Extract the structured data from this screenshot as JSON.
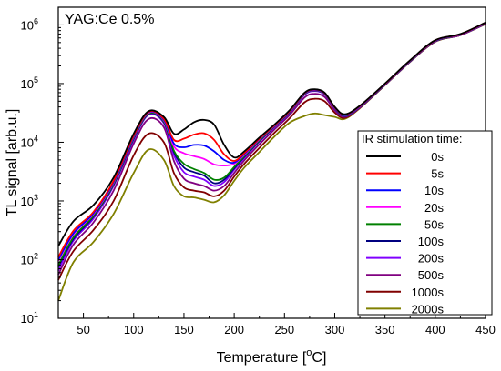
{
  "chart_data": {
    "type": "line",
    "annotation": "YAG:Ce 0.5%",
    "xlabel": "Temperature [",
    "xlabel_unit_sup": "o",
    "xlabel_unit_tail": "C]",
    "ylabel": "TL signal [arb.u.]",
    "xlim": [
      25,
      450
    ],
    "ylim": [
      10,
      2000000
    ],
    "yscale": "log",
    "x_ticks": [
      50,
      100,
      150,
      200,
      250,
      300,
      350,
      400,
      450
    ],
    "x_tick_labels": [
      "50",
      "100",
      "150",
      "200",
      "250",
      "300",
      "350",
      "400",
      "450"
    ],
    "y_ticks": [
      {
        "base": "10",
        "exp": "1"
      },
      {
        "base": "10",
        "exp": "2"
      },
      {
        "base": "10",
        "exp": "3"
      },
      {
        "base": "10",
        "exp": "4"
      },
      {
        "base": "10",
        "exp": "5"
      },
      {
        "base": "10",
        "exp": "6"
      }
    ],
    "legend_title": "IR stimulation time:",
    "legend_position": "lower-right",
    "grid": false,
    "x": [
      25,
      40,
      60,
      80,
      100,
      115,
      130,
      140,
      150,
      160,
      170,
      180,
      190,
      200,
      210,
      225,
      240,
      255,
      270,
      280,
      290,
      300,
      310,
      325,
      350,
      375,
      400,
      425,
      450
    ],
    "series": [
      {
        "name": "0s",
        "color": "#000000",
        "values": [
          170,
          450,
          850,
          2500,
          14000,
          34000,
          27000,
          14000,
          16500,
          22000,
          24000,
          20000,
          9000,
          5500,
          7000,
          12000,
          20000,
          35000,
          70000,
          80000,
          70000,
          40000,
          30000,
          42000,
          100000,
          250000,
          550000,
          700000,
          1100000
        ]
      },
      {
        "name": "5s",
        "color": "#ff0000",
        "values": [
          110,
          310,
          650,
          2200,
          13000,
          33000,
          25000,
          11000,
          11500,
          13500,
          14200,
          11000,
          6200,
          4800,
          6500,
          11500,
          19500,
          34000,
          69000,
          79000,
          69000,
          39500,
          29500,
          41500,
          99000,
          248000,
          545000,
          695000,
          1090000
        ]
      },
      {
        "name": "10s",
        "color": "#0000ff",
        "values": [
          100,
          280,
          620,
          2100,
          12500,
          32500,
          24000,
          9500,
          8200,
          9000,
          8800,
          7000,
          5000,
          4500,
          6300,
          11300,
          19300,
          33500,
          68000,
          78000,
          68000,
          39000,
          29000,
          41000,
          98000,
          246000,
          540000,
          690000,
          1080000
        ]
      },
      {
        "name": "20s",
        "color": "#ff00ff",
        "values": [
          95,
          270,
          600,
          2050,
          12300,
          32000,
          23500,
          8500,
          6500,
          5800,
          5200,
          4200,
          4000,
          4300,
          6100,
          11100,
          19100,
          33200,
          67500,
          77500,
          67500,
          38800,
          28800,
          40800,
          97500,
          244000,
          536000,
          686000,
          1070000
        ]
      },
      {
        "name": "50s",
        "color": "#008000",
        "values": [
          80,
          240,
          560,
          1950,
          11800,
          31000,
          22500,
          7200,
          4300,
          3500,
          3000,
          2300,
          2500,
          3800,
          5800,
          10700,
          18700,
          32500,
          66500,
          76500,
          66500,
          38300,
          28300,
          40300,
          96500,
          241000,
          530000,
          680000,
          1060000
        ]
      },
      {
        "name": "100s",
        "color": "#000080",
        "values": [
          75,
          225,
          540,
          1900,
          11500,
          30500,
          22000,
          6800,
          3700,
          3100,
          2700,
          2000,
          2300,
          3600,
          5600,
          10500,
          18500,
          32200,
          66000,
          76000,
          66000,
          38000,
          28000,
          40000,
          96000,
          240000,
          528000,
          678000,
          1055000
        ]
      },
      {
        "name": "200s",
        "color": "#8000ff",
        "values": [
          65,
          210,
          500,
          1800,
          11000,
          29500,
          21000,
          6000,
          3100,
          2600,
          2300,
          1800,
          2100,
          3400,
          5400,
          10200,
          18000,
          31500,
          64500,
          74500,
          65000,
          37500,
          27800,
          39700,
          95500,
          238000,
          525000,
          675000,
          1050000
        ]
      },
      {
        "name": "500s",
        "color": "#800080",
        "values": [
          55,
          180,
          430,
          1500,
          9500,
          25000,
          18000,
          4800,
          2400,
          2000,
          1800,
          1500,
          1800,
          3000,
          4900,
          9200,
          16500,
          29000,
          58000,
          67000,
          59000,
          35000,
          27000,
          39000,
          95000,
          237000,
          522000,
          672000,
          1045000
        ]
      },
      {
        "name": "1000s",
        "color": "#800000",
        "values": [
          45,
          140,
          320,
          1000,
          6000,
          14000,
          10000,
          3000,
          1700,
          1500,
          1400,
          1200,
          1500,
          2600,
          4300,
          8000,
          14500,
          25500,
          48000,
          55000,
          50000,
          32000,
          26000,
          38500,
          94500,
          236000,
          520000,
          670000,
          1040000
        ]
      },
      {
        "name": "2000s",
        "color": "#808000",
        "values": [
          20,
          90,
          200,
          600,
          3000,
          7500,
          5000,
          1800,
          1200,
          1150,
          1050,
          950,
          1250,
          2200,
          3700,
          6800,
          12500,
          21500,
          28000,
          31000,
          29000,
          27000,
          25000,
          38000,
          94000,
          235000,
          518000,
          668000,
          1035000
        ]
      }
    ]
  }
}
